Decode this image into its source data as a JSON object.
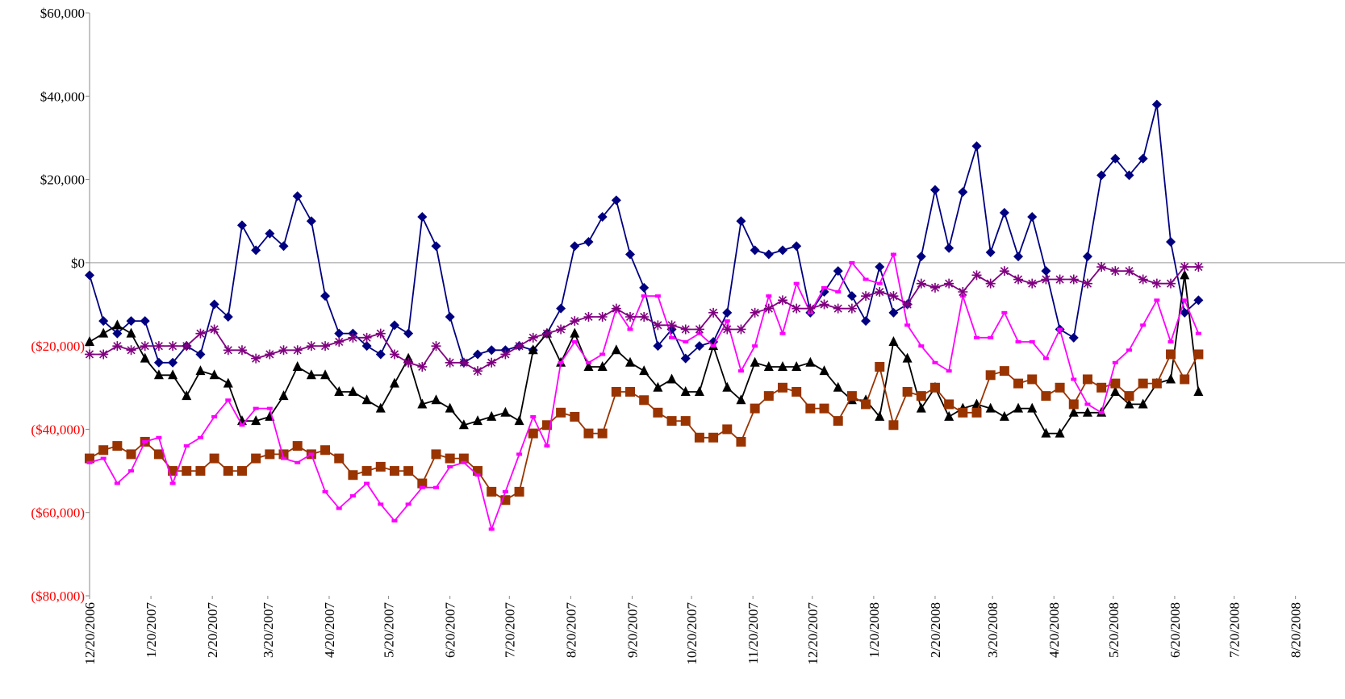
{
  "chart_data": {
    "type": "line",
    "x": [
      "12/20/2006",
      "12/27/2006",
      "1/3/2007",
      "1/10/2007",
      "1/17/2007",
      "1/24/2007",
      "1/31/2007",
      "2/7/2007",
      "2/14/2007",
      "2/21/2007",
      "2/28/2007",
      "3/7/2007",
      "3/14/2007",
      "3/21/2007",
      "3/28/2007",
      "4/4/2007",
      "4/11/2007",
      "4/18/2007",
      "4/25/2007",
      "5/2/2007",
      "5/9/2007",
      "5/16/2007",
      "5/23/2007",
      "5/30/2007",
      "6/6/2007",
      "6/13/2007",
      "6/20/2007",
      "6/27/2007",
      "7/4/2007",
      "7/11/2007",
      "7/18/2007",
      "7/25/2007",
      "8/1/2007",
      "8/8/2007",
      "8/15/2007",
      "8/22/2007",
      "8/29/2007",
      "9/5/2007",
      "9/12/2007",
      "9/19/2007",
      "9/26/2007",
      "10/3/2007",
      "10/10/2007",
      "10/17/2007",
      "10/24/2007",
      "10/31/2007",
      "11/7/2007",
      "11/14/2007",
      "11/21/2007",
      "11/28/2007",
      "12/5/2007",
      "12/12/2007",
      "12/19/2007",
      "12/26/2007",
      "1/2/2008",
      "1/9/2008",
      "1/16/2008",
      "1/23/2008",
      "1/30/2008",
      "2/6/2008",
      "2/13/2008",
      "2/20/2008",
      "2/27/2008",
      "3/5/2008",
      "3/12/2008",
      "3/19/2008",
      "3/26/2008",
      "4/2/2008",
      "4/9/2008",
      "4/16/2008",
      "4/23/2008",
      "4/30/2008",
      "5/7/2008",
      "5/14/2008",
      "5/21/2008",
      "5/28/2008",
      "6/4/2008",
      "6/11/2008",
      "6/18/2008",
      "6/25/2008",
      "7/2/2008"
    ],
    "series": [
      {
        "color": "#000080",
        "marker": "diamond",
        "values": [
          -3000,
          -14000,
          -17000,
          -14000,
          -14000,
          -24000,
          -24000,
          -20000,
          -22000,
          -10000,
          -13000,
          9000,
          3000,
          7000,
          4000,
          16000,
          10000,
          -8000,
          -17000,
          -17000,
          -20000,
          -22000,
          -15000,
          -17000,
          11000,
          4000,
          -13000,
          -24000,
          -22000,
          -21000,
          -21000,
          -20000,
          -21000,
          -17000,
          -11000,
          4000,
          5000,
          11000,
          15000,
          2000,
          -6000,
          -20000,
          -16000,
          -23000,
          -20000,
          -19000,
          -12000,
          10000,
          3000,
          2000,
          3000,
          4000,
          -12000,
          -7000,
          -2000,
          -8000,
          -14000,
          -1000,
          -12000,
          -10000,
          1500,
          17500,
          3500,
          17000,
          28000,
          2500,
          12000,
          1500,
          11000,
          -2000,
          -16000,
          -18000,
          1500,
          21000,
          25000,
          21000,
          25000,
          38000,
          5000,
          -12000,
          -9000
        ]
      },
      {
        "color": "#000000",
        "marker": "triangle",
        "values": [
          -19000,
          -17000,
          -15000,
          -17000,
          -23000,
          -27000,
          -27000,
          -32000,
          -26000,
          -27000,
          -29000,
          -38000,
          -38000,
          -37000,
          -32000,
          -25000,
          -27000,
          -27000,
          -31000,
          -31000,
          -33000,
          -35000,
          -29000,
          -23000,
          -34000,
          -33000,
          -35000,
          -39000,
          -38000,
          -37000,
          -36000,
          -38000,
          -21000,
          -17000,
          -24000,
          -17000,
          -25000,
          -25000,
          -21000,
          -24000,
          -26000,
          -30000,
          -28000,
          -31000,
          -31000,
          -20000,
          -30000,
          -33000,
          -24000,
          -25000,
          -25000,
          -25000,
          -24000,
          -26000,
          -30000,
          -33000,
          -33000,
          -37000,
          -19000,
          -23000,
          -35000,
          -30000,
          -37000,
          -35000,
          -34000,
          -35000,
          -37000,
          -35000,
          -35000,
          -41000,
          -41000,
          -36000,
          -36000,
          -36000,
          -31000,
          -34000,
          -34000,
          -29000,
          -28000,
          -3000,
          -31000
        ]
      },
      {
        "color": "#993300",
        "marker": "square",
        "values": [
          -47000,
          -45000,
          -44000,
          -46000,
          -43000,
          -46000,
          -50000,
          -50000,
          -50000,
          -47000,
          -50000,
          -50000,
          -47000,
          -46000,
          -46000,
          -44000,
          -46000,
          -45000,
          -47000,
          -51000,
          -50000,
          -49000,
          -50000,
          -50000,
          -53000,
          -46000,
          -47000,
          -47000,
          -50000,
          -55000,
          -57000,
          -55000,
          -41000,
          -39000,
          -36000,
          -37000,
          -41000,
          -41000,
          -31000,
          -31000,
          -33000,
          -36000,
          -38000,
          -38000,
          -42000,
          -42000,
          -40000,
          -43000,
          -35000,
          -32000,
          -30000,
          -31000,
          -35000,
          -35000,
          -38000,
          -32000,
          -34000,
          -25000,
          -39000,
          -31000,
          -32000,
          -30000,
          -34000,
          -36000,
          -36000,
          -27000,
          -26000,
          -29000,
          -28000,
          -32000,
          -30000,
          -34000,
          -28000,
          -30000,
          -29000,
          -32000,
          -29000,
          -29000,
          -22000,
          -28000,
          -22000
        ]
      },
      {
        "color": "#ff00ff",
        "marker": "dash",
        "values": [
          -48000,
          -47000,
          -53000,
          -50000,
          -43000,
          -42000,
          -53000,
          -44000,
          -42000,
          -37000,
          -33000,
          -39000,
          -35000,
          -35000,
          -47000,
          -48000,
          -46000,
          -55000,
          -59000,
          -56000,
          -53000,
          -58000,
          -62000,
          -58000,
          -54000,
          -54000,
          -49000,
          -48000,
          -51000,
          -64000,
          -55000,
          -46000,
          -37000,
          -44000,
          -24000,
          -19000,
          -24000,
          -22000,
          -11000,
          -16000,
          -8000,
          -8000,
          -18000,
          -19000,
          -17000,
          -20000,
          -14000,
          -26000,
          -20000,
          -8000,
          -17000,
          -5000,
          -12000,
          -6000,
          -7000,
          0,
          -4000,
          -5000,
          2000,
          -15000,
          -20000,
          -24000,
          -26000,
          -8000,
          -18000,
          -18000,
          -12000,
          -19000,
          -19000,
          -23000,
          -16000,
          -28000,
          -34000,
          -36000,
          -24000,
          -21000,
          -15000,
          -9000,
          -19000,
          -9000,
          -17000
        ]
      },
      {
        "color": "#800080",
        "marker": "asterisk",
        "values": [
          -22000,
          -22000,
          -20000,
          -21000,
          -20000,
          -20000,
          -20000,
          -20000,
          -17000,
          -16000,
          -21000,
          -21000,
          -23000,
          -22000,
          -21000,
          -21000,
          -20000,
          -20000,
          -19000,
          -18000,
          -18000,
          -17000,
          -22000,
          -24000,
          -25000,
          -20000,
          -24000,
          -24000,
          -26000,
          -24000,
          -22000,
          -20000,
          -18000,
          -17000,
          -16000,
          -14000,
          -13000,
          -13000,
          -11000,
          -13000,
          -13000,
          -15000,
          -15000,
          -16000,
          -16000,
          -12000,
          -16000,
          -16000,
          -12000,
          -11000,
          -9000,
          -11000,
          -11000,
          -10000,
          -11000,
          -11000,
          -8000,
          -7000,
          -8000,
          -10000,
          -5000,
          -6000,
          -5000,
          -7000,
          -3000,
          -5000,
          -2000,
          -4000,
          -5000,
          -4000,
          -4000,
          -4000,
          -5000,
          -1000,
          -2000,
          -2000,
          -4000,
          -5000,
          -5000,
          -1000,
          -1000
        ]
      }
    ],
    "xlim": [
      "12/20/2006",
      "9/14/2008"
    ],
    "xticks": [
      "12/20/2006",
      "1/20/2007",
      "2/20/2007",
      "3/20/2007",
      "4/20/2007",
      "5/20/2007",
      "6/20/2007",
      "7/20/2007",
      "8/20/2007",
      "9/20/2007",
      "10/20/2007",
      "11/20/2007",
      "12/20/2007",
      "1/20/2008",
      "2/20/2008",
      "3/20/2008",
      "4/20/2008",
      "5/20/2008",
      "6/20/2008",
      "7/20/2008",
      "8/20/2008"
    ],
    "ylim": [
      -80000,
      60000
    ],
    "yticks": [
      {
        "value": 60000,
        "label": "$60,000"
      },
      {
        "value": 40000,
        "label": "$40,000"
      },
      {
        "value": 20000,
        "label": "$20,000"
      },
      {
        "value": 0,
        "label": "$0"
      },
      {
        "value": -20000,
        "label": "($20,000)"
      },
      {
        "value": -40000,
        "label": "($40,000)"
      },
      {
        "value": -60000,
        "label": "($60,000)"
      },
      {
        "value": -80000,
        "label": "($80,000)"
      }
    ],
    "negative_tick_color": "#ff0000",
    "zero_line": true
  }
}
